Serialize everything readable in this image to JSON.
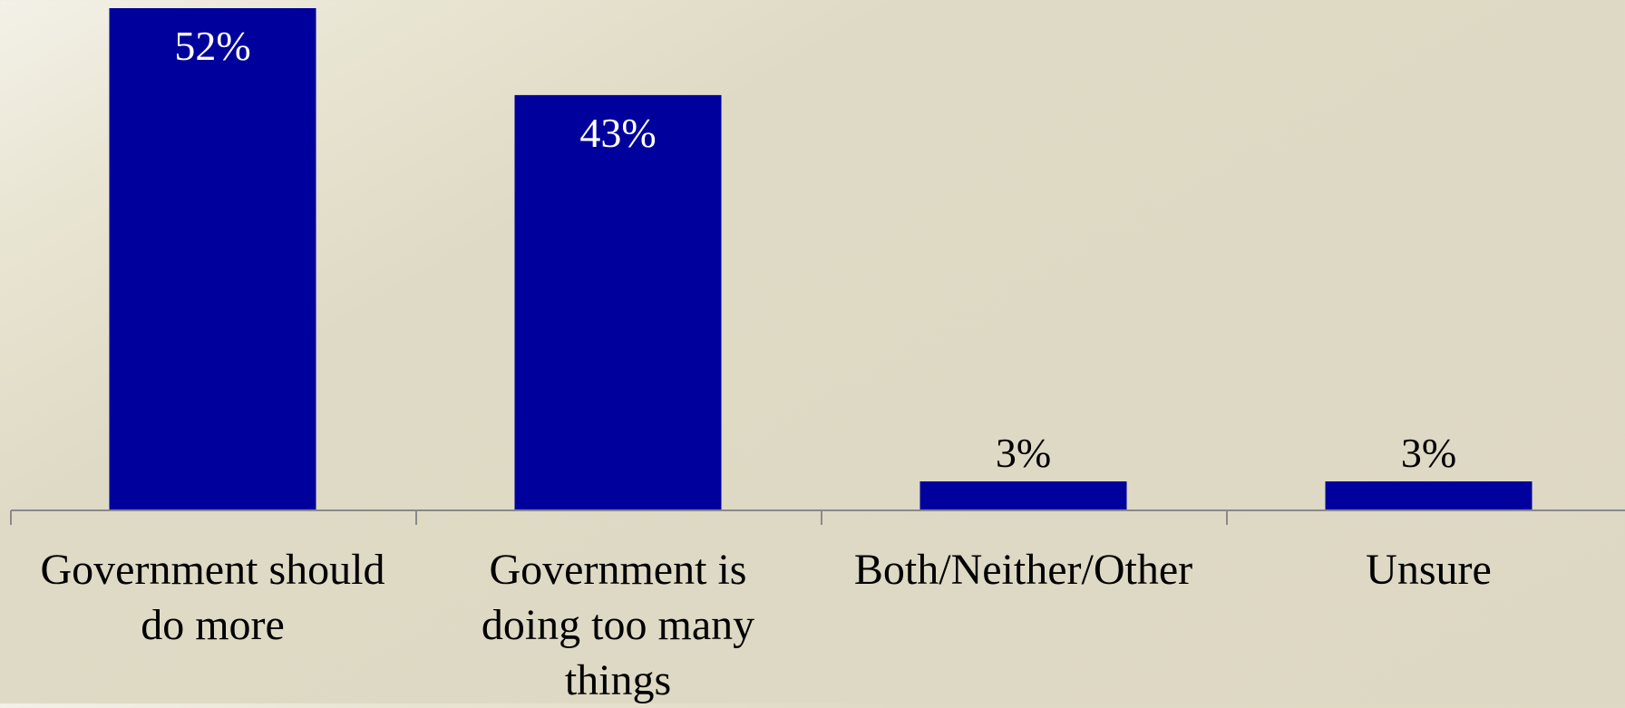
{
  "chart_data": {
    "type": "bar",
    "categories": [
      [
        "Government should",
        "do more"
      ],
      [
        "Government is",
        "doing too many",
        "things"
      ],
      [
        "Both/Neither/Other"
      ],
      [
        "Unsure"
      ]
    ],
    "values": [
      52,
      43,
      3,
      3
    ],
    "value_labels": [
      "52%",
      "43%",
      "3%",
      "3%"
    ],
    "ylim": [
      0,
      52
    ],
    "grid": false,
    "legend": "none",
    "colors": {
      "bar": "#00009c",
      "axis": "#8a8a8a",
      "label_inside": "#ffffff",
      "label_outside": "#000000",
      "category_text": "#000000"
    }
  }
}
